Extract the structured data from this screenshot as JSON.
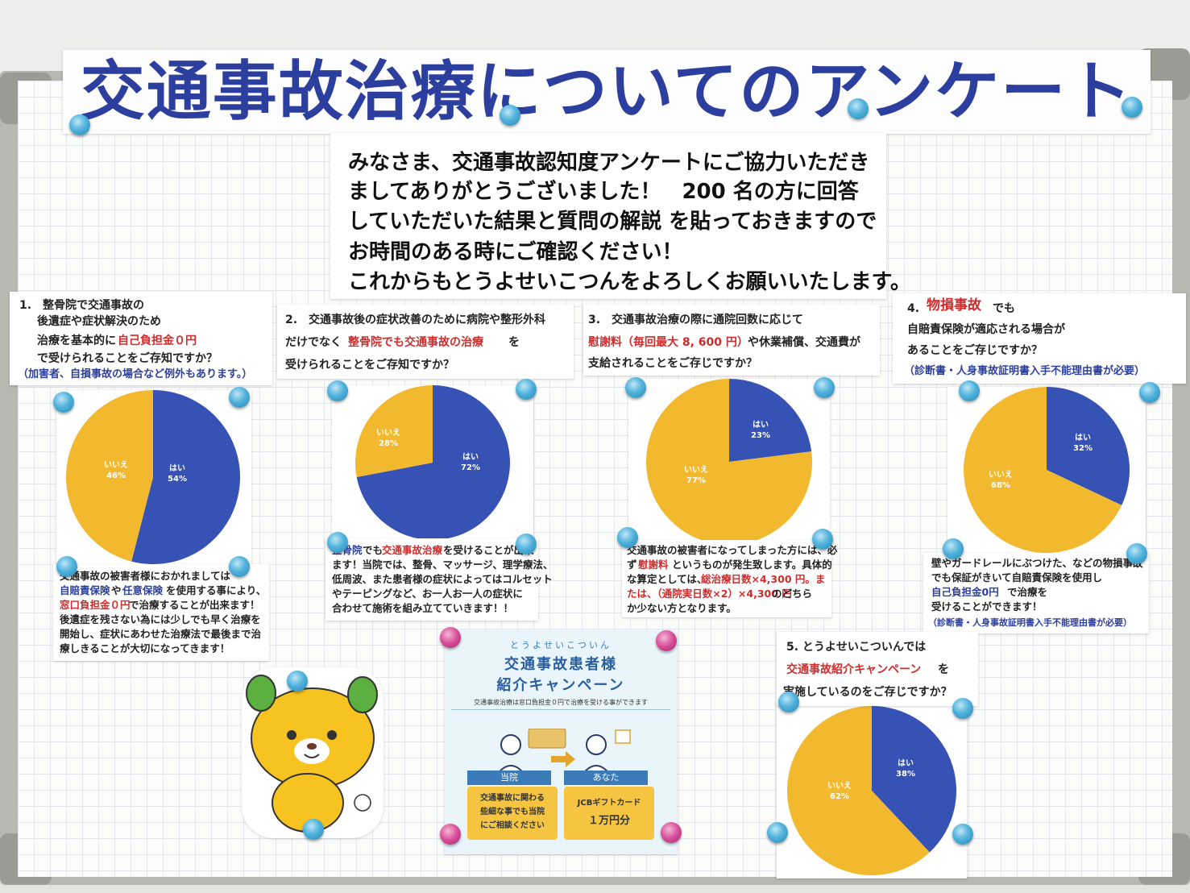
{
  "title": "交通事故治療についてのアンケート",
  "intro_lines": [
    "みなさま、交通事故認知度アンケートにご協力いただき",
    "ましてありがとうございました！　200 名の方に回答",
    "していただいた結果と質問の解説 を貼っておきますので",
    "お時間のある時にご確認ください！",
    "これからもとうよせいこつんをよろしくお願いいたします。"
  ],
  "questions": {
    "q1": {
      "lines": [
        "1.　整骨院で交通事故の",
        "後遺症や症状解決のため",
        "治療を基本的に",
        "自己負担金０円",
        "で受けられることをご存知ですか？",
        "（加害者、自損事故の場合など例外もあります。）"
      ]
    },
    "q2": {
      "lines": [
        "2.　交通事故後の症状改善のために病院や整形外科",
        "だけでなく",
        "整骨院でも交通事故の治療",
        "を",
        "受けられることをご存知ですか？"
      ]
    },
    "q3": {
      "lines": [
        "3.　交通事故治療の際に通院回数に応じて",
        "慰謝料（毎回最大 8, 600 円）",
        "や休業補償、交通費が",
        "支給されることをご存じですか？"
      ]
    },
    "q4": {
      "lines": [
        "4.",
        "物損事故",
        "でも",
        "自賠責保険が適応される場合が",
        "あることをご存じですか？",
        "（診断書・人身事故証明書入手不能理由書が必要）"
      ]
    },
    "q5": {
      "lines": [
        "5. とうよせいこついんでは",
        "交通事故紹介キャンペーン",
        "を",
        "実施しているのをご存じですか？"
      ]
    }
  },
  "explanations": {
    "e1": [
      "交通事故の被害者様におかれましては",
      "自賠責保険",
      "や",
      "任意保険",
      "を使用する事により、",
      "窓口負担金０円",
      "で治療することが出来ます！",
      "後遺症を残さない為には少しでも早く治療を",
      "開始し、症状にあわせた治療法で最後まで治",
      "療しきることが大切になってきます！"
    ],
    "e2": [
      "整骨院",
      "でも",
      "交通事故治療",
      "を受けることが出来",
      "ます！当院では、整骨、マッサージ、理学療法、",
      "低周波、また患者様の症状によってはコルセット",
      "やテーピングなど、お一人お一人の症状に",
      "合わせて施術を組み立てていきます！！"
    ],
    "e3": [
      "交通事故の被害者になってしまった方には、必",
      "ず",
      "慰謝料",
      "というものが発生致します。具体的",
      "な算定としては、",
      "総治療日数×4,300 円。ま",
      "たは、（通院実日数×2）×4,300 円",
      "のどちら",
      "か少ない方となります。"
    ],
    "e4": [
      "壁やガードレールにぶつけた、などの物損事故",
      "でも保証がきいて自賠責保険を使用し",
      "自己負担金0円",
      "で治療を",
      "受けることができます！",
      "（診断書・人身事故証明書入手不能理由書が必要）"
    ]
  },
  "chart_data": [
    {
      "type": "pie",
      "categories": [
        "はい",
        "いいえ"
      ],
      "values": [
        54,
        46
      ],
      "labels": [
        "はい\n54%",
        "いいえ\n46%"
      ]
    },
    {
      "type": "pie",
      "categories": [
        "はい",
        "いいえ"
      ],
      "values": [
        72,
        28
      ],
      "labels": [
        "はい\n72%",
        "いいえ\n28%"
      ]
    },
    {
      "type": "pie",
      "categories": [
        "はい",
        "いいえ"
      ],
      "values": [
        23,
        77
      ],
      "labels": [
        "はい\n23%",
        "いいえ\n77%"
      ]
    },
    {
      "type": "pie",
      "categories": [
        "はい",
        "いいえ"
      ],
      "values": [
        32,
        68
      ],
      "labels": [
        "はい\n32%",
        "いいえ\n68%"
      ]
    },
    {
      "type": "pie",
      "categories": [
        "はい",
        "いいえ"
      ],
      "values": [
        38,
        62
      ],
      "labels": [
        "はい\n38%",
        "いいえ\n62%"
      ]
    }
  ],
  "pie_labels": {
    "yes": "はい",
    "no": "いいえ",
    "p1_yes": "54%",
    "p1_no": "46%",
    "p2_yes": "72%",
    "p2_no": "28%",
    "p3_yes": "23%",
    "p3_no": "77%",
    "p4_yes": "32%",
    "p4_no": "68%",
    "p5_yes": "38%",
    "p5_no": "62%"
  },
  "colors": {
    "yes": "#3752b5",
    "no": "#f2b82e",
    "title": "#2d3f9e",
    "accent_red": "#d22b2b"
  },
  "poster": {
    "brand": "とうよせいこついん",
    "heading1": "交通事故患者様",
    "heading2": "紹介キャンペーン",
    "sub": "交通事故治療は窓口負担金０円で治療を受ける事ができます",
    "left_label": "当院",
    "right_label": "あなた",
    "left_text1": "交通事故に関わる",
    "left_text2": "些細な事でも当院",
    "left_text3": "にご相談ください",
    "right_text1": "JCBギフトカード",
    "right_text2": "１万円分"
  },
  "icons": [
    "magnet-icon",
    "gift-icon",
    "arrow-right-icon",
    "person-icon"
  ]
}
